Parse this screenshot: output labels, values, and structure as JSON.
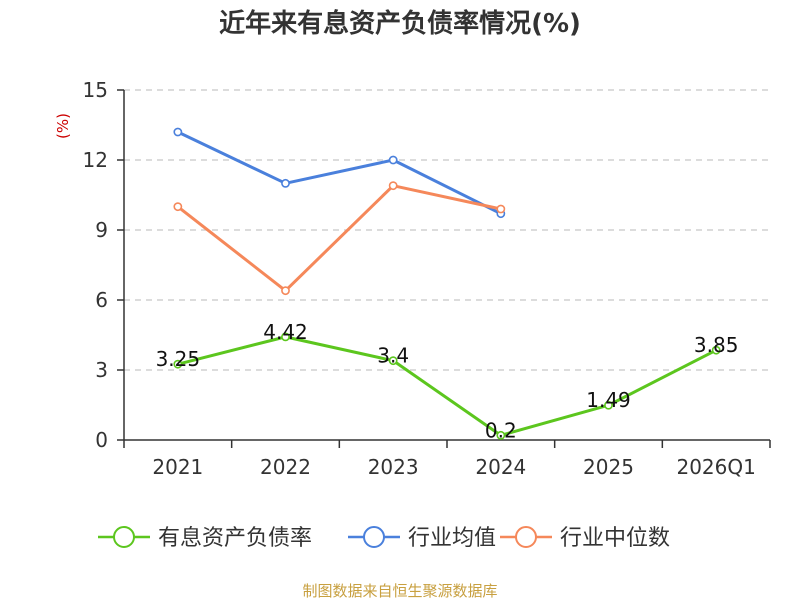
{
  "chart_data": {
    "type": "line",
    "title": "近年来有息资产负债率情况(%)",
    "ylabel": "(%)",
    "xlabel": "",
    "categories": [
      "2021",
      "2022",
      "2023",
      "2024",
      "2025",
      "2026Q1"
    ],
    "yticks": [
      "0",
      "3",
      "6",
      "9",
      "12",
      "15"
    ],
    "ylim": [
      0,
      15
    ],
    "grid": true,
    "legend_position": "bottom",
    "series": [
      {
        "name": "有息资产负债率",
        "color": "#5cc61e",
        "values": [
          3.25,
          4.42,
          3.4,
          0.2,
          1.49,
          3.85
        ],
        "labels": [
          "3.25",
          "4.42",
          "3.4",
          "0.2",
          "1.49",
          "3.85"
        ]
      },
      {
        "name": "行业均值",
        "color": "#4a80dc",
        "values": [
          13.2,
          11.0,
          12.0,
          9.7,
          null,
          null
        ]
      },
      {
        "name": "行业中位数",
        "color": "#f5885a",
        "values": [
          10.0,
          6.4,
          10.9,
          9.9,
          null,
          null
        ]
      }
    ],
    "source": "制图数据来自恒生聚源数据库",
    "source_color": "#c8a040"
  }
}
